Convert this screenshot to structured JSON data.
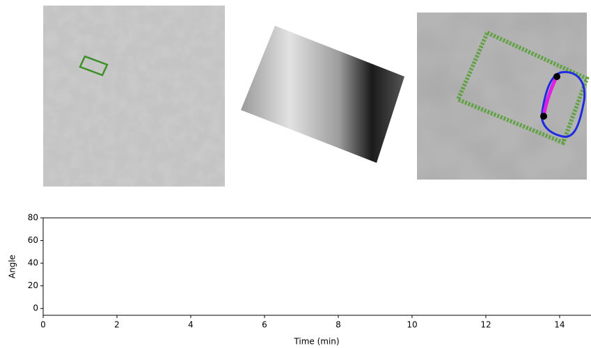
{
  "chart_data": {
    "type": "line",
    "xlabel": "Time (min)",
    "ylabel": "Angle",
    "xlim": [
      0,
      14.85
    ],
    "xticks": [
      0,
      2,
      4,
      6,
      8,
      10,
      12,
      14
    ],
    "ylim": [
      -6,
      80
    ],
    "yticks": [
      0,
      20,
      40,
      60,
      80
    ]
  }
}
